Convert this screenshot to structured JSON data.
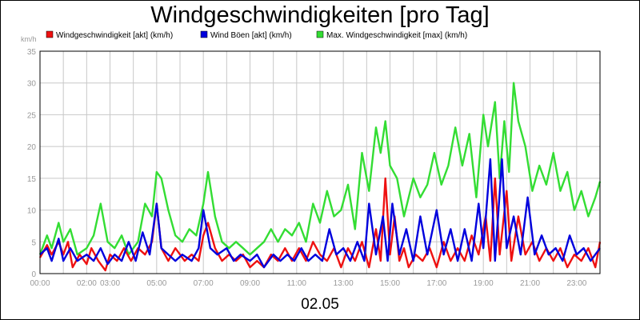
{
  "chart_data": {
    "type": "line",
    "title": "Windgeschwindigkeiten [pro Tag]",
    "ylabel": "km/h",
    "xlabel": "02.05",
    "ylim": [
      0,
      35
    ],
    "yticks": [
      0,
      5,
      10,
      15,
      20,
      25,
      30,
      35
    ],
    "xlim": [
      0,
      24
    ],
    "xticks": [
      {
        "x": 0,
        "label": "00:00"
      },
      {
        "x": 2,
        "label": "02:00"
      },
      {
        "x": 3,
        "label": "03:00"
      },
      {
        "x": 5,
        "label": "05:00"
      },
      {
        "x": 7,
        "label": "07:00"
      },
      {
        "x": 9,
        "label": "09:00"
      },
      {
        "x": 11,
        "label": "11:00"
      },
      {
        "x": 13,
        "label": "13:00"
      },
      {
        "x": 15,
        "label": "15:00"
      },
      {
        "x": 17,
        "label": "17:00"
      },
      {
        "x": 19,
        "label": "19:00"
      },
      {
        "x": 21,
        "label": "21:00"
      },
      {
        "x": 23,
        "label": "23:00"
      }
    ],
    "grid": true,
    "legend_position": "top",
    "series": [
      {
        "name": "Windgeschwindigkeit [akt] (km/h)",
        "color": "#ee1111",
        "points": [
          [
            0,
            2.5
          ],
          [
            0.3,
            4.5
          ],
          [
            0.5,
            3
          ],
          [
            0.8,
            5
          ],
          [
            1,
            3
          ],
          [
            1.2,
            5
          ],
          [
            1.4,
            1
          ],
          [
            1.7,
            3
          ],
          [
            2,
            1.5
          ],
          [
            2.2,
            4
          ],
          [
            2.5,
            2
          ],
          [
            2.8,
            0.5
          ],
          [
            3,
            3
          ],
          [
            3.3,
            2
          ],
          [
            3.6,
            4
          ],
          [
            3.9,
            2
          ],
          [
            4.2,
            4
          ],
          [
            4.5,
            3
          ],
          [
            4.8,
            5
          ],
          [
            5,
            11
          ],
          [
            5.2,
            4
          ],
          [
            5.5,
            2
          ],
          [
            5.8,
            4
          ],
          [
            6.2,
            2
          ],
          [
            6.5,
            3
          ],
          [
            6.8,
            2
          ],
          [
            7,
            6
          ],
          [
            7.2,
            8
          ],
          [
            7.5,
            4
          ],
          [
            7.8,
            2
          ],
          [
            8.1,
            3
          ],
          [
            8.4,
            2
          ],
          [
            8.7,
            3
          ],
          [
            9,
            1
          ],
          [
            9.3,
            2
          ],
          [
            9.6,
            1
          ],
          [
            9.9,
            3
          ],
          [
            10.2,
            2
          ],
          [
            10.5,
            4
          ],
          [
            10.8,
            2
          ],
          [
            11.1,
            4
          ],
          [
            11.4,
            2
          ],
          [
            11.7,
            5
          ],
          [
            12,
            3
          ],
          [
            12.3,
            2
          ],
          [
            12.6,
            4
          ],
          [
            12.9,
            1
          ],
          [
            13.2,
            4
          ],
          [
            13.5,
            2
          ],
          [
            13.8,
            5
          ],
          [
            14.1,
            1
          ],
          [
            14.4,
            7
          ],
          [
            14.6,
            2
          ],
          [
            14.8,
            15
          ],
          [
            15,
            3
          ],
          [
            15.2,
            9
          ],
          [
            15.4,
            2
          ],
          [
            15.6,
            4
          ],
          [
            15.8,
            1
          ],
          [
            16.1,
            3
          ],
          [
            16.4,
            2
          ],
          [
            16.7,
            4
          ],
          [
            17,
            1
          ],
          [
            17.3,
            5
          ],
          [
            17.6,
            2
          ],
          [
            17.9,
            4
          ],
          [
            18.2,
            2
          ],
          [
            18.5,
            6
          ],
          [
            18.8,
            3
          ],
          [
            19.1,
            9
          ],
          [
            19.3,
            2
          ],
          [
            19.5,
            15
          ],
          [
            19.7,
            3
          ],
          [
            20,
            13
          ],
          [
            20.2,
            2
          ],
          [
            20.5,
            9
          ],
          [
            20.8,
            3
          ],
          [
            21.1,
            5
          ],
          [
            21.4,
            2
          ],
          [
            21.7,
            4
          ],
          [
            22,
            2
          ],
          [
            22.3,
            4
          ],
          [
            22.6,
            1
          ],
          [
            22.9,
            3
          ],
          [
            23.2,
            2
          ],
          [
            23.5,
            4
          ],
          [
            23.8,
            1
          ],
          [
            24,
            5
          ]
        ]
      },
      {
        "name": "Wind Böen [akt] (km/h)",
        "color": "#0000dd",
        "points": [
          [
            0,
            3
          ],
          [
            0.3,
            4
          ],
          [
            0.5,
            2
          ],
          [
            0.8,
            5.5
          ],
          [
            1,
            2
          ],
          [
            1.3,
            4
          ],
          [
            1.6,
            2
          ],
          [
            2,
            3
          ],
          [
            2.3,
            2
          ],
          [
            2.6,
            4
          ],
          [
            2.9,
            1.5
          ],
          [
            3.2,
            3
          ],
          [
            3.5,
            2
          ],
          [
            3.8,
            5
          ],
          [
            4.1,
            2
          ],
          [
            4.4,
            6.5
          ],
          [
            4.7,
            3
          ],
          [
            5,
            11
          ],
          [
            5.2,
            4
          ],
          [
            5.5,
            3
          ],
          [
            5.8,
            2
          ],
          [
            6.1,
            3
          ],
          [
            6.5,
            2
          ],
          [
            6.8,
            4
          ],
          [
            7,
            10
          ],
          [
            7.3,
            4
          ],
          [
            7.6,
            3
          ],
          [
            8,
            4
          ],
          [
            8.3,
            2
          ],
          [
            8.6,
            3
          ],
          [
            9,
            2
          ],
          [
            9.3,
            3
          ],
          [
            9.6,
            1
          ],
          [
            10,
            3
          ],
          [
            10.3,
            2
          ],
          [
            10.6,
            3
          ],
          [
            10.9,
            2
          ],
          [
            11.2,
            4
          ],
          [
            11.5,
            2
          ],
          [
            11.8,
            3
          ],
          [
            12.1,
            2
          ],
          [
            12.4,
            7
          ],
          [
            12.7,
            3
          ],
          [
            13,
            4
          ],
          [
            13.3,
            2
          ],
          [
            13.6,
            5
          ],
          [
            13.9,
            2
          ],
          [
            14.1,
            11
          ],
          [
            14.4,
            3
          ],
          [
            14.7,
            9
          ],
          [
            14.9,
            2
          ],
          [
            15.1,
            11
          ],
          [
            15.4,
            3
          ],
          [
            15.7,
            7
          ],
          [
            16,
            2
          ],
          [
            16.3,
            9
          ],
          [
            16.6,
            3
          ],
          [
            17,
            10
          ],
          [
            17.3,
            3
          ],
          [
            17.6,
            7
          ],
          [
            17.9,
            2
          ],
          [
            18.2,
            7
          ],
          [
            18.5,
            2
          ],
          [
            18.8,
            11
          ],
          [
            19,
            4
          ],
          [
            19.3,
            18
          ],
          [
            19.5,
            2
          ],
          [
            19.8,
            18
          ],
          [
            20,
            4
          ],
          [
            20.3,
            9
          ],
          [
            20.6,
            3
          ],
          [
            20.9,
            12
          ],
          [
            21.2,
            3
          ],
          [
            21.5,
            6
          ],
          [
            21.8,
            3
          ],
          [
            22.1,
            4
          ],
          [
            22.4,
            2
          ],
          [
            22.7,
            6
          ],
          [
            23,
            3
          ],
          [
            23.3,
            4
          ],
          [
            23.6,
            2
          ],
          [
            24,
            4
          ]
        ]
      },
      {
        "name": "Max. Windgeschwindigkeit [max] (km/h)",
        "color": "#33dd33",
        "points": [
          [
            0,
            3
          ],
          [
            0.3,
            6
          ],
          [
            0.5,
            4
          ],
          [
            0.8,
            8
          ],
          [
            1,
            5
          ],
          [
            1.3,
            7
          ],
          [
            1.6,
            3
          ],
          [
            2,
            4
          ],
          [
            2.3,
            6
          ],
          [
            2.6,
            11
          ],
          [
            2.9,
            5
          ],
          [
            3.2,
            4
          ],
          [
            3.5,
            6
          ],
          [
            3.8,
            3
          ],
          [
            4.2,
            5
          ],
          [
            4.5,
            11
          ],
          [
            4.8,
            9
          ],
          [
            5,
            16
          ],
          [
            5.2,
            15
          ],
          [
            5.5,
            10
          ],
          [
            5.8,
            6
          ],
          [
            6.1,
            5
          ],
          [
            6.4,
            7
          ],
          [
            6.7,
            6
          ],
          [
            7,
            11
          ],
          [
            7.2,
            16
          ],
          [
            7.5,
            9
          ],
          [
            7.8,
            5
          ],
          [
            8.1,
            4
          ],
          [
            8.4,
            5
          ],
          [
            8.7,
            4
          ],
          [
            9,
            3
          ],
          [
            9.3,
            4
          ],
          [
            9.6,
            5
          ],
          [
            9.9,
            7
          ],
          [
            10.2,
            5
          ],
          [
            10.5,
            7
          ],
          [
            10.8,
            6
          ],
          [
            11.1,
            8
          ],
          [
            11.4,
            5
          ],
          [
            11.7,
            11
          ],
          [
            12,
            8
          ],
          [
            12.3,
            13
          ],
          [
            12.6,
            9
          ],
          [
            12.9,
            10
          ],
          [
            13.2,
            14
          ],
          [
            13.5,
            7
          ],
          [
            13.8,
            19
          ],
          [
            14.1,
            13
          ],
          [
            14.4,
            23
          ],
          [
            14.6,
            19
          ],
          [
            14.8,
            24
          ],
          [
            15,
            17
          ],
          [
            15.3,
            15
          ],
          [
            15.6,
            9
          ],
          [
            16,
            15
          ],
          [
            16.3,
            12
          ],
          [
            16.6,
            14
          ],
          [
            16.9,
            19
          ],
          [
            17.2,
            14
          ],
          [
            17.5,
            17
          ],
          [
            17.8,
            23
          ],
          [
            18.1,
            17
          ],
          [
            18.4,
            22
          ],
          [
            18.7,
            12
          ],
          [
            19,
            25
          ],
          [
            19.2,
            20
          ],
          [
            19.5,
            27
          ],
          [
            19.7,
            15
          ],
          [
            19.9,
            24
          ],
          [
            20.1,
            16
          ],
          [
            20.3,
            30
          ],
          [
            20.5,
            24
          ],
          [
            20.8,
            20
          ],
          [
            21.1,
            13
          ],
          [
            21.4,
            17
          ],
          [
            21.7,
            14
          ],
          [
            22,
            19
          ],
          [
            22.3,
            13
          ],
          [
            22.6,
            16
          ],
          [
            22.9,
            10
          ],
          [
            23.2,
            13
          ],
          [
            23.5,
            9
          ],
          [
            23.8,
            12
          ],
          [
            24,
            14.5
          ]
        ]
      }
    ]
  }
}
